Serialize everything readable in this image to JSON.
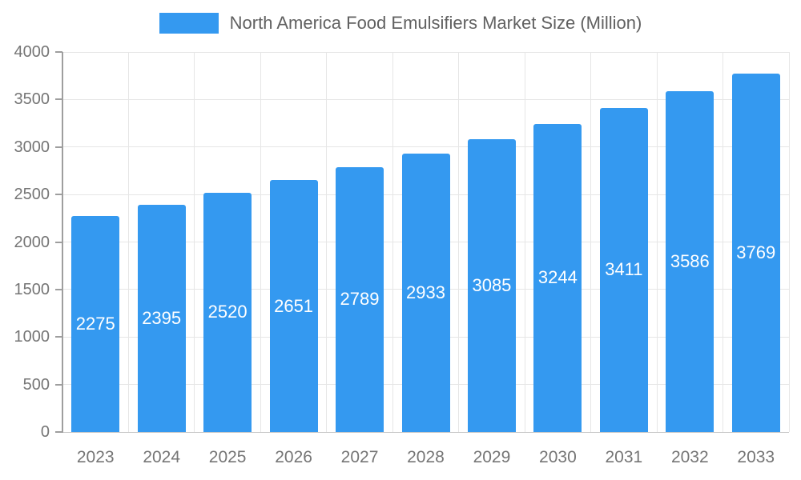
{
  "chart_data": {
    "type": "bar",
    "title": "North America Food Emulsifiers Market Size (Million)",
    "categories": [
      "2023",
      "2024",
      "2025",
      "2026",
      "2027",
      "2028",
      "2029",
      "2030",
      "2031",
      "2032",
      "2033"
    ],
    "values": [
      2275,
      2395,
      2520,
      2651,
      2789,
      2933,
      3085,
      3244,
      3411,
      3586,
      3769
    ],
    "ylim": [
      0,
      4000
    ],
    "ytick_step": 500,
    "grid": true,
    "legend_position": "top",
    "bar_color": "#3499F0",
    "bar_label_color": "#ffffff",
    "axis_text_color": "#757575",
    "gridline_color": "#e6e6e6",
    "axis_line_color": "#9e9e9e"
  }
}
